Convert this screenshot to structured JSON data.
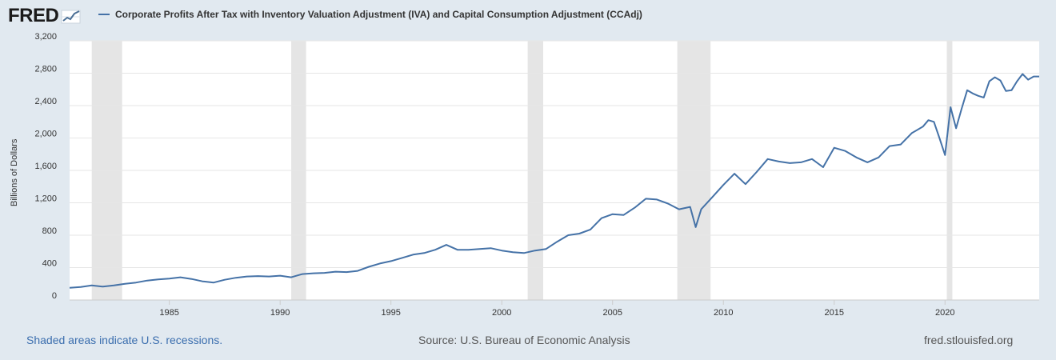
{
  "header": {
    "logo_text": "FRED",
    "logo_graph_icon": "line-graph-icon",
    "legend_label": "Corporate Profits After Tax with Inventory Valuation Adjustment (IVA) and Capital Consumption Adjustment (CCAdj)"
  },
  "footer": {
    "recession_note": "Shaded areas indicate U.S. recessions.",
    "source": "Source: U.S. Bureau of Economic Analysis",
    "site": "fred.stlouisfed.org"
  },
  "colors": {
    "series": "#4572a7",
    "recession": "#e5e5e5",
    "background": "#e1e9f0",
    "plot": "#ffffff"
  },
  "chart_data": {
    "type": "line",
    "title": "",
    "xlabel": "",
    "ylabel": "Billions of Dollars",
    "xlim": [
      1980.5,
      2024.25
    ],
    "ylim": [
      0,
      3200
    ],
    "y_ticks": [
      0,
      400,
      800,
      1200,
      1600,
      2000,
      2400,
      2800,
      3200
    ],
    "y_tick_labels": [
      "0",
      "400",
      "800",
      "1,200",
      "1,600",
      "2,000",
      "2,400",
      "2,800",
      "3,200"
    ],
    "x_ticks": [
      1985,
      1990,
      1995,
      2000,
      2005,
      2010,
      2015,
      2020
    ],
    "x_tick_labels": [
      "1985",
      "1990",
      "1995",
      "2000",
      "2005",
      "2010",
      "2015",
      "2020"
    ],
    "grid": true,
    "recessions": [
      [
        1981.5,
        1982.87
      ],
      [
        1990.5,
        1991.17
      ],
      [
        2001.17,
        2001.87
      ],
      [
        2007.92,
        2009.42
      ],
      [
        2020.08,
        2020.33
      ]
    ],
    "series": [
      {
        "name": "Corporate Profits After Tax with Inventory Valuation Adjustment (IVA) and Capital Consumption Adjustment (CCAdj)",
        "x": [
          1980.5,
          1981.0,
          1981.5,
          1982.0,
          1982.5,
          1983.0,
          1983.5,
          1984.0,
          1984.5,
          1985.0,
          1985.5,
          1986.0,
          1986.5,
          1987.0,
          1987.5,
          1988.0,
          1988.5,
          1989.0,
          1989.5,
          1990.0,
          1990.5,
          1991.0,
          1991.5,
          1992.0,
          1992.5,
          1993.0,
          1993.5,
          1994.0,
          1994.5,
          1995.0,
          1995.5,
          1996.0,
          1996.5,
          1997.0,
          1997.5,
          1998.0,
          1998.5,
          1999.0,
          1999.5,
          2000.0,
          2000.5,
          2001.0,
          2001.5,
          2002.0,
          2002.5,
          2003.0,
          2003.5,
          2004.0,
          2004.5,
          2005.0,
          2005.5,
          2006.0,
          2006.5,
          2007.0,
          2007.5,
          2008.0,
          2008.5,
          2008.75,
          2009.0,
          2009.5,
          2010.0,
          2010.5,
          2011.0,
          2011.5,
          2012.0,
          2012.5,
          2013.0,
          2013.5,
          2014.0,
          2014.5,
          2015.0,
          2015.5,
          2016.0,
          2016.5,
          2017.0,
          2017.5,
          2018.0,
          2018.5,
          2019.0,
          2019.25,
          2019.5,
          2019.75,
          2020.0,
          2020.25,
          2020.5,
          2020.75,
          2021.0,
          2021.25,
          2021.5,
          2021.75,
          2022.0,
          2022.25,
          2022.5,
          2022.75,
          2023.0,
          2023.25,
          2023.5,
          2023.75,
          2024.0,
          2024.25
        ],
        "values": [
          150,
          160,
          180,
          165,
          180,
          200,
          215,
          240,
          255,
          265,
          280,
          260,
          230,
          215,
          250,
          275,
          290,
          295,
          290,
          300,
          280,
          320,
          330,
          335,
          350,
          345,
          360,
          410,
          450,
          480,
          520,
          560,
          580,
          620,
          680,
          620,
          620,
          630,
          640,
          610,
          590,
          580,
          610,
          630,
          720,
          800,
          820,
          870,
          1010,
          1060,
          1050,
          1140,
          1250,
          1240,
          1190,
          1120,
          1150,
          900,
          1120,
          1270,
          1420,
          1560,
          1430,
          1580,
          1740,
          1710,
          1690,
          1700,
          1740,
          1640,
          1880,
          1840,
          1760,
          1700,
          1760,
          1900,
          1920,
          2060,
          2140,
          2220,
          2200,
          2000,
          1790,
          2380,
          2120,
          2360,
          2590,
          2550,
          2520,
          2500,
          2700,
          2750,
          2710,
          2580,
          2590,
          2700,
          2790,
          2720,
          2760,
          2760
        ]
      }
    ]
  }
}
